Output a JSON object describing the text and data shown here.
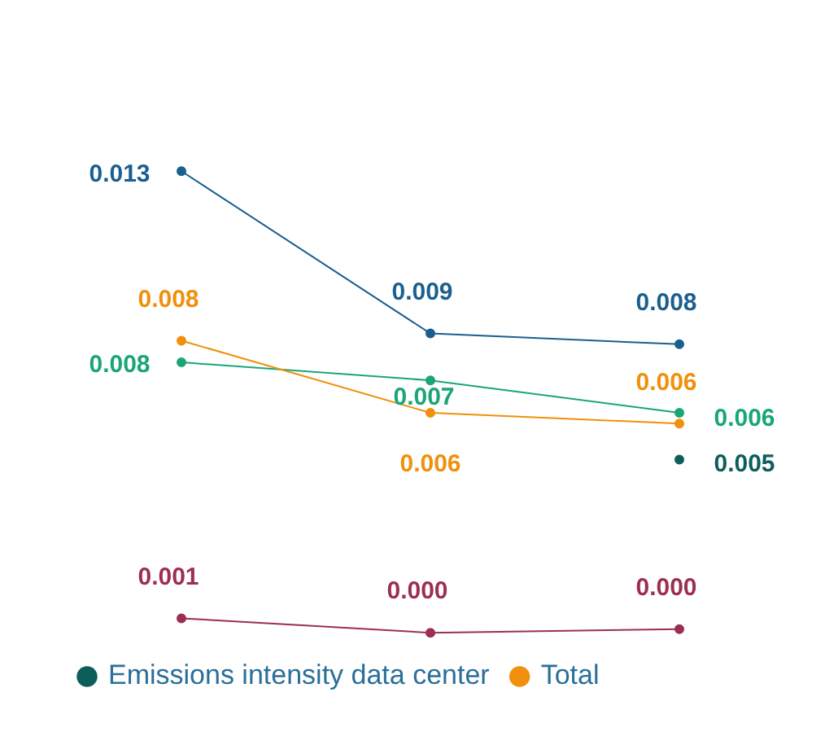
{
  "chart_data": {
    "type": "line",
    "categories": [
      null,
      null,
      null
    ],
    "series": [
      {
        "color": "#1b5f8f",
        "values": [
          0.013,
          0.0085,
          0.0082
        ],
        "value_labels": [
          "0.013",
          "0.009",
          "0.008"
        ]
      },
      {
        "name": "Total",
        "color": "#f0900c",
        "values": [
          0.0083,
          0.0063,
          0.006
        ],
        "value_labels": [
          "0.008",
          "0.006",
          "0.006"
        ]
      },
      {
        "color": "#1aa579",
        "values": [
          0.0077,
          0.0072,
          0.0063
        ],
        "value_labels": [
          "0.008",
          "0.007",
          "0.006"
        ]
      },
      {
        "name": "Emissions intensity data center",
        "color": "#0d5e5b",
        "values": [
          null,
          null,
          0.005
        ],
        "value_labels": [
          null,
          null,
          "0.005"
        ]
      },
      {
        "color": "#9c2f50",
        "values": [
          0.0006,
          0.0002,
          0.0003
        ],
        "value_labels": [
          "0.001",
          "0.000",
          "0.000"
        ]
      }
    ],
    "marker": "circle",
    "legend": "bottom left"
  }
}
